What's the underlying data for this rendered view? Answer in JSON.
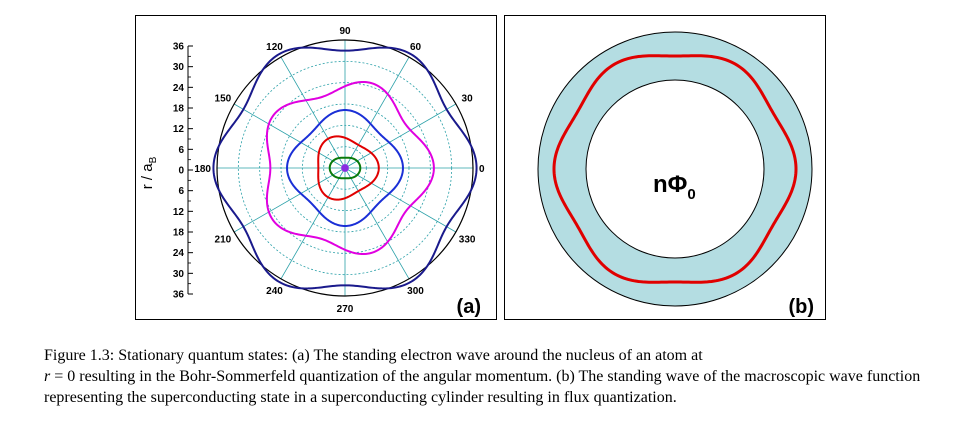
{
  "figure": {
    "panel_a": {
      "label": "(a)",
      "y_axis_title": "r / a",
      "y_axis_title_sub": "B",
      "y_ticks": [
        "36",
        "30",
        "24",
        "18",
        "12",
        "6",
        "0",
        "6",
        "12",
        "18",
        "24",
        "30",
        "36"
      ],
      "angle_labels": [
        "0",
        "30",
        "60",
        "90",
        "120",
        "150",
        "180",
        "210",
        "240",
        "270",
        "300",
        "330"
      ]
    },
    "panel_b": {
      "label": "(b)",
      "center_label": "nΦ",
      "center_label_sub": "0"
    },
    "colors": {
      "navy": "#1a1a8c",
      "blue": "#1a2fd6",
      "magenta": "#e000e0",
      "red": "#e00000",
      "green": "#0a7a0a",
      "purple": "#8a2be2",
      "grid": "#2aa0a8",
      "annulus": "#b4dde2"
    }
  },
  "chart_data": {
    "type": "polar",
    "title": "",
    "r_label": "r / aB",
    "r_range": [
      0,
      36
    ],
    "theta_ticks_deg": [
      0,
      30,
      60,
      90,
      120,
      150,
      180,
      210,
      240,
      270,
      300,
      330
    ],
    "series": [
      {
        "color": "navy",
        "mean_radius": 35,
        "amplitude": 2.0,
        "nodes": 6
      },
      {
        "color": "magenta",
        "mean_radius": 23,
        "amplitude": 2.0,
        "nodes": 5
      },
      {
        "color": "blue",
        "mean_radius": 15,
        "amplitude": 1.3,
        "nodes": 4
      },
      {
        "color": "red",
        "mean_radius": 8.5,
        "amplitude": 1.0,
        "nodes": 3
      },
      {
        "color": "green",
        "mean_radius": 3.6,
        "amplitude": 0.7,
        "nodes": 2
      },
      {
        "color": "purple",
        "mean_radius": 0.8,
        "amplitude": 0.0,
        "nodes": 1
      }
    ]
  },
  "caption": {
    "prefix": "Figure 1.3: Stationary quantum states: (a) The standing electron wave around the nucleus of an atom at",
    "r_var": "r",
    "r_eq": " = 0 resulting in the Bohr-Sommerfeld quantization of the angular momentum. (b) The standing wave of the macroscopic wave function representing the superconducting state in a superconducting cylinder resulting in flux quantization."
  }
}
